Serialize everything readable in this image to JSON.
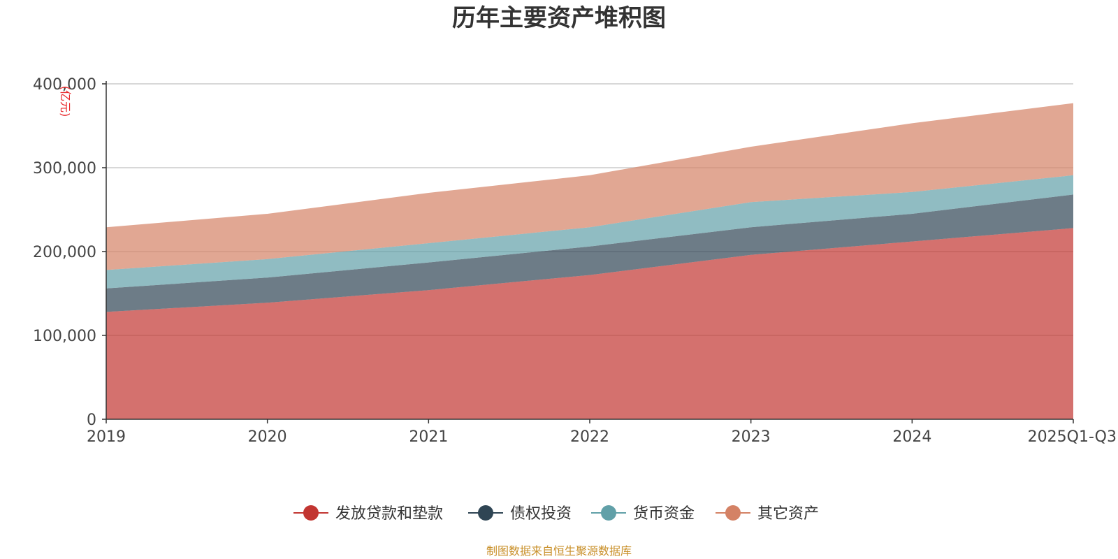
{
  "chart_data": {
    "type": "area",
    "stacked": true,
    "title": "历年主要资产堆积图",
    "y_unit": "(亿元)",
    "categories": [
      "2019",
      "2020",
      "2021",
      "2022",
      "2023",
      "2024",
      "2025Q1-Q3"
    ],
    "y_ticks": [
      "0",
      "100,000",
      "200,000",
      "300,000",
      "400,000"
    ],
    "ylim": [
      0,
      400000
    ],
    "grid": true,
    "legend_position": "bottom",
    "series": [
      {
        "name": "发放贷款和垫款",
        "color": "#c23531",
        "values": [
          128000,
          139000,
          154000,
          172000,
          196000,
          212000,
          228000
        ]
      },
      {
        "name": "债权投资",
        "color": "#2f4554",
        "values": [
          28000,
          30000,
          33000,
          34000,
          33000,
          33000,
          40000
        ]
      },
      {
        "name": "货币资金",
        "color": "#61a0a8",
        "values": [
          22000,
          22000,
          23000,
          23000,
          30000,
          26000,
          23000
        ]
      },
      {
        "name": "其它资产",
        "color": "#d48265",
        "values": [
          51000,
          54000,
          60000,
          62000,
          66000,
          82000,
          86000
        ]
      }
    ],
    "source": "制图数据来自恒生聚源数据库"
  }
}
